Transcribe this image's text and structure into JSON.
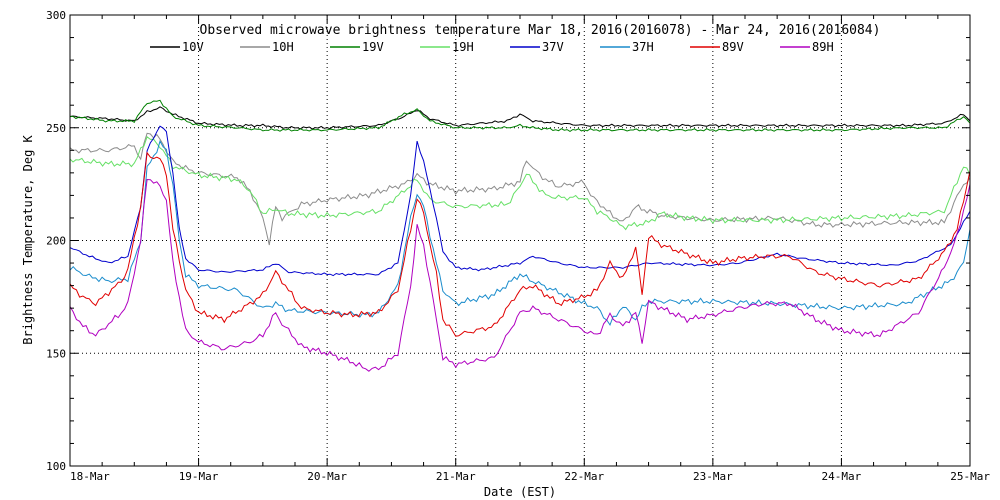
{
  "chart_data": {
    "type": "line",
    "title": "Observed microwave brightness temperature Mar 18, 2016(2016078) - Mar 24, 2016(2016084)",
    "xlabel": "Date (EST)",
    "ylabel": "Brightness Temperature, Deg K",
    "xlim": [
      0,
      7
    ],
    "ylim": [
      100,
      300
    ],
    "x_tick_labels": [
      "18-Mar",
      "19-Mar",
      "20-Mar",
      "21-Mar",
      "22-Mar",
      "23-Mar",
      "24-Mar",
      "25-Mar"
    ],
    "y_ticks": [
      100,
      150,
      200,
      250,
      300
    ],
    "grid": "dotted",
    "series": [
      {
        "name": "10V",
        "color": "#000000",
        "x": [
          0,
          0.3,
          0.5,
          0.6,
          0.7,
          0.8,
          1.0,
          1.3,
          1.5,
          1.7,
          2.0,
          2.4,
          2.6,
          2.7,
          2.8,
          3.0,
          3.4,
          3.5,
          3.6,
          3.8,
          4.0,
          4.5,
          5.0,
          5.5,
          6.0,
          6.5,
          6.8,
          6.95,
          7.0
        ],
        "y": [
          255,
          254,
          253,
          257,
          259,
          256,
          252,
          251,
          251,
          250,
          250,
          251,
          255,
          258,
          254,
          251,
          253,
          256,
          253,
          252,
          251,
          251,
          251,
          251,
          251,
          251,
          252,
          256,
          253
        ]
      },
      {
        "name": "10H",
        "color": "#8c8c8c",
        "x": [
          0,
          0.3,
          0.5,
          0.55,
          0.6,
          0.7,
          0.8,
          0.9,
          1.0,
          1.3,
          1.4,
          1.5,
          1.55,
          1.6,
          1.65,
          1.8,
          2.0,
          2.3,
          2.6,
          2.7,
          2.8,
          3.0,
          3.3,
          3.5,
          3.55,
          3.6,
          3.7,
          3.8,
          4.0,
          4.05,
          4.2,
          4.3,
          4.4,
          4.6,
          4.8,
          5.0,
          5.5,
          5.8,
          6.0,
          6.5,
          6.8,
          6.95,
          7.0
        ],
        "y": [
          240,
          240,
          242,
          236,
          248,
          245,
          235,
          232,
          230,
          228,
          222,
          210,
          199,
          215,
          210,
          216,
          218,
          220,
          225,
          229,
          225,
          222,
          223,
          226,
          236,
          232,
          227,
          224,
          226,
          220,
          212,
          208,
          215,
          211,
          210,
          209,
          210,
          207,
          207,
          208,
          208,
          225,
          228
        ]
      },
      {
        "name": "19V",
        "color": "#008000",
        "x": [
          0,
          0.3,
          0.5,
          0.6,
          0.7,
          0.8,
          1.0,
          1.3,
          1.5,
          1.7,
          2.0,
          2.4,
          2.6,
          2.7,
          2.8,
          3.0,
          3.4,
          3.5,
          3.6,
          3.8,
          4.0,
          4.5,
          5.0,
          5.5,
          6.0,
          6.5,
          6.8,
          6.95,
          7.0
        ],
        "y": [
          255,
          253,
          253,
          261,
          262,
          255,
          251,
          250,
          249,
          249,
          249,
          250,
          256,
          258,
          253,
          250,
          250,
          251,
          250,
          249,
          249,
          249,
          249,
          249,
          249,
          250,
          250,
          255,
          252
        ]
      },
      {
        "name": "19H",
        "color": "#66e066",
        "x": [
          0,
          0.3,
          0.5,
          0.55,
          0.6,
          0.7,
          0.8,
          0.9,
          1.0,
          1.3,
          1.4,
          1.5,
          1.6,
          1.7,
          2.0,
          2.4,
          2.6,
          2.7,
          2.8,
          3.0,
          3.4,
          3.5,
          3.55,
          3.6,
          3.7,
          3.8,
          4.0,
          4.1,
          4.2,
          4.3,
          4.5,
          4.6,
          4.8,
          5.0,
          5.5,
          6.0,
          6.5,
          6.8,
          6.95,
          7.0
        ],
        "y": [
          236,
          234,
          234,
          240,
          246,
          242,
          233,
          231,
          229,
          227,
          222,
          212,
          214,
          212,
          211,
          213,
          222,
          227,
          218,
          215,
          216,
          224,
          230,
          226,
          220,
          219,
          219,
          213,
          210,
          206,
          208,
          212,
          210,
          209,
          209,
          210,
          211,
          213,
          233,
          229
        ]
      },
      {
        "name": "37V",
        "color": "#0000cc",
        "x": [
          0,
          0.15,
          0.3,
          0.45,
          0.55,
          0.6,
          0.7,
          0.75,
          0.8,
          0.85,
          0.9,
          1.0,
          1.2,
          1.5,
          1.6,
          1.65,
          1.7,
          2.0,
          2.4,
          2.55,
          2.65,
          2.7,
          2.75,
          2.85,
          2.9,
          3.0,
          3.2,
          3.5,
          3.6,
          3.8,
          4.0,
          4.3,
          4.5,
          5.0,
          5.2,
          5.5,
          5.7,
          6.0,
          6.4,
          6.6,
          6.85,
          6.95,
          7.0
        ],
        "y": [
          197,
          193,
          190,
          193,
          215,
          240,
          251,
          248,
          230,
          205,
          192,
          187,
          186,
          187,
          190,
          188,
          186,
          185,
          185,
          190,
          220,
          244,
          235,
          210,
          195,
          188,
          187,
          190,
          193,
          190,
          188,
          188,
          190,
          189,
          190,
          194,
          192,
          190,
          189,
          191,
          198,
          208,
          213
        ]
      },
      {
        "name": "37H",
        "color": "#1a8ccc",
        "x": [
          0,
          0.15,
          0.3,
          0.45,
          0.55,
          0.6,
          0.7,
          0.75,
          0.8,
          0.85,
          0.9,
          1.0,
          1.3,
          1.5,
          1.6,
          1.7,
          2.0,
          2.3,
          2.4,
          2.55,
          2.65,
          2.7,
          2.75,
          2.85,
          2.9,
          3.0,
          3.3,
          3.5,
          3.6,
          3.8,
          4.0,
          4.1,
          4.2,
          4.3,
          4.4,
          4.45,
          4.5,
          5.0,
          5.5,
          6.0,
          6.5,
          6.85,
          6.95,
          7.0
        ],
        "y": [
          188,
          184,
          182,
          183,
          200,
          232,
          243,
          240,
          225,
          200,
          185,
          180,
          178,
          170,
          172,
          169,
          168,
          167,
          168,
          180,
          210,
          221,
          215,
          190,
          178,
          172,
          176,
          185,
          182,
          177,
          172,
          170,
          163,
          171,
          165,
          170,
          173,
          173,
          172,
          170,
          172,
          182,
          190,
          205
        ]
      },
      {
        "name": "89V",
        "color": "#e00000",
        "x": [
          0,
          0.1,
          0.2,
          0.3,
          0.4,
          0.45,
          0.55,
          0.6,
          0.7,
          0.75,
          0.8,
          0.9,
          1.0,
          1.2,
          1.4,
          1.5,
          1.6,
          1.65,
          1.7,
          1.8,
          2.0,
          2.2,
          2.4,
          2.55,
          2.65,
          2.7,
          2.75,
          2.85,
          2.9,
          3.0,
          3.3,
          3.5,
          3.6,
          3.8,
          4.0,
          4.1,
          4.2,
          4.3,
          4.4,
          4.45,
          4.5,
          4.6,
          4.8,
          5.0,
          5.2,
          5.4,
          5.6,
          5.8,
          6.0,
          6.3,
          6.6,
          6.8,
          6.9,
          7.0
        ],
        "y": [
          180,
          175,
          172,
          177,
          182,
          187,
          215,
          238,
          236,
          230,
          205,
          178,
          168,
          165,
          172,
          176,
          186,
          182,
          178,
          170,
          168,
          167,
          168,
          178,
          205,
          219,
          212,
          185,
          165,
          158,
          162,
          178,
          180,
          172,
          175,
          178,
          190,
          183,
          197,
          176,
          202,
          198,
          194,
          190,
          192,
          193,
          193,
          186,
          183,
          180,
          183,
          195,
          205,
          231
        ]
      },
      {
        "name": "89H",
        "color": "#b000c0",
        "x": [
          0,
          0.1,
          0.2,
          0.3,
          0.4,
          0.45,
          0.55,
          0.6,
          0.7,
          0.75,
          0.8,
          0.9,
          1.0,
          1.2,
          1.4,
          1.5,
          1.6,
          1.65,
          1.7,
          1.8,
          2.0,
          2.2,
          2.3,
          2.4,
          2.55,
          2.65,
          2.7,
          2.75,
          2.85,
          2.9,
          3.0,
          3.3,
          3.5,
          3.6,
          3.8,
          4.0,
          4.1,
          4.2,
          4.3,
          4.4,
          4.45,
          4.5,
          4.6,
          4.8,
          5.0,
          5.2,
          5.4,
          5.6,
          5.8,
          6.0,
          6.3,
          6.6,
          6.8,
          6.9,
          7.0
        ],
        "y": [
          170,
          162,
          158,
          163,
          168,
          172,
          200,
          228,
          224,
          218,
          190,
          160,
          155,
          152,
          155,
          158,
          168,
          163,
          160,
          153,
          150,
          146,
          143,
          143,
          150,
          180,
          206,
          198,
          165,
          148,
          145,
          148,
          168,
          170,
          165,
          160,
          158,
          167,
          162,
          168,
          155,
          173,
          170,
          165,
          167,
          170,
          172,
          172,
          165,
          160,
          158,
          168,
          188,
          202,
          225
        ]
      }
    ]
  }
}
